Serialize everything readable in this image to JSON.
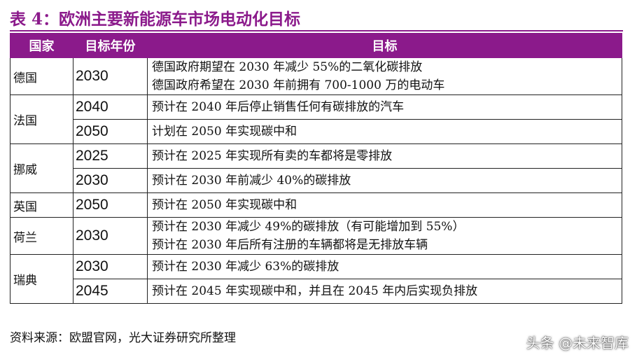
{
  "title": "表 4：欧洲主要新能源车市场电动化目标",
  "headers": [
    "国家",
    "目标年份",
    "目标"
  ],
  "rows": [
    {
      "country": "德国",
      "entries": [
        {
          "year": "2030",
          "lines": [
            "德国政府期望在 2030 年减少 55%的二氧化碳排放",
            "德国政府希望在 2030 年前拥有 700-1000 万的电动车"
          ]
        }
      ]
    },
    {
      "country": "法国",
      "entries": [
        {
          "year": "2040",
          "lines": [
            "预计在 2040 年后停止销售任何有碳排放的汽车"
          ]
        },
        {
          "year": "2050",
          "lines": [
            "计划在 2050 年实现碳中和"
          ]
        }
      ]
    },
    {
      "country": "挪威",
      "entries": [
        {
          "year": "2025",
          "lines": [
            "预计在 2025 年实现所有卖的车都将是零排放"
          ]
        },
        {
          "year": "2030",
          "lines": [
            "预计在 2030 年前减少 40%的碳排放"
          ]
        }
      ]
    },
    {
      "country": "英国",
      "entries": [
        {
          "year": "2050",
          "lines": [
            "预计在 2050 年实现碳中和"
          ]
        }
      ]
    },
    {
      "country": "荷兰",
      "entries": [
        {
          "year": "2030",
          "lines": [
            "预计在 2030 年减少 49%的碳排放（有可能增加到 55%）",
            "预计在 2030 年后所有注册的车辆都将是无排放车辆"
          ]
        }
      ]
    },
    {
      "country": "瑞典",
      "entries": [
        {
          "year": "2030",
          "lines": [
            "预计在 2030 年减少 63%的碳排放"
          ]
        },
        {
          "year": "2045",
          "lines": [
            "预计在 2045 年实现碳中和，并且在 2045 年内后实现负排放"
          ]
        }
      ]
    }
  ],
  "source": "资料来源：欧盟官网，光大证券研究所整理",
  "watermark": "头条 @未来智库",
  "colors": {
    "accent": "#8b1a8b",
    "header_text": "#ffffff"
  }
}
